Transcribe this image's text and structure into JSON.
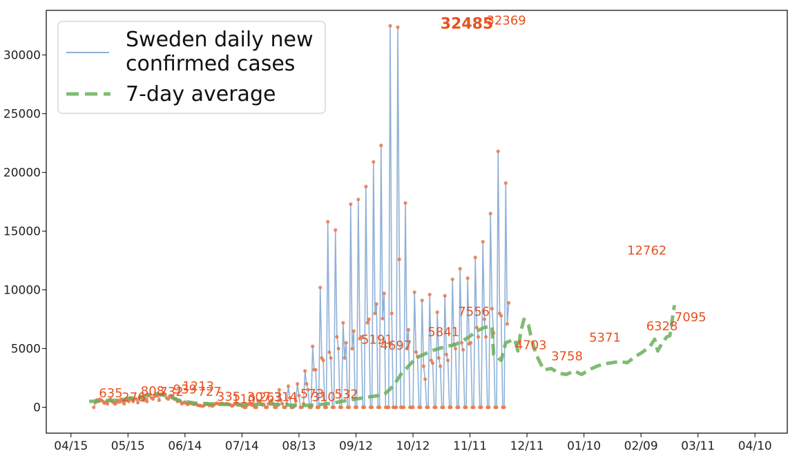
{
  "chart_data": {
    "type": "line",
    "title": "",
    "xlabel": "",
    "ylabel": "",
    "x_tick_labels": [
      "04/15",
      "05/15",
      "06/14",
      "07/14",
      "08/13",
      "09/12",
      "10/12",
      "11/11",
      "12/11",
      "01/10",
      "02/09",
      "03/11",
      "04/10"
    ],
    "x_tick_offsets_days": [
      0,
      30,
      60,
      90,
      120,
      150,
      180,
      210,
      240,
      270,
      300,
      330,
      360
    ],
    "y_ticks": [
      0,
      5000,
      10000,
      15000,
      20000,
      25000,
      30000
    ],
    "y_tick_labels": [
      "0",
      "5000",
      "10000",
      "15000",
      "20000",
      "25000",
      "30000"
    ],
    "xlim_days": [
      -13,
      377
    ],
    "ylim": [
      -2200,
      33800
    ],
    "legend": {
      "placement": "top-left",
      "entries": [
        {
          "label_line1": "Sweden daily new",
          "label_line2": "confirmed cases",
          "color": "#8fb1d6",
          "style": "solid"
        },
        {
          "label_line1": "7-day average",
          "color": "#6aaf5c",
          "style": "dashed"
        }
      ]
    },
    "daily_color": "#8fb1d6",
    "marker_color": "#e8794b",
    "average_color": "#6aaf5c",
    "annotation_color": "#e8501e",
    "series_daily": {
      "start_day": 12,
      "values": [
        0,
        400,
        635,
        500,
        700,
        600,
        500,
        350,
        450,
        300,
        600,
        700,
        500,
        400,
        276,
        400,
        600,
        450,
        700,
        500,
        300,
        600,
        700,
        500,
        808,
        650,
        500,
        750,
        700,
        400,
        800,
        900,
        700,
        600,
        732,
        500,
        1000,
        1100,
        800,
        700,
        939,
        1000,
        1000,
        600,
        1100,
        1100,
        1213,
        1100,
        800,
        700,
        900,
        1000,
        900,
        700,
        727,
        500,
        600,
        500,
        300,
        400,
        450,
        300,
        250,
        400,
        335,
        300,
        250,
        300,
        200,
        150,
        150,
        100,
        110,
        200,
        300,
        250,
        150,
        200,
        100,
        200,
        307,
        350,
        300,
        250,
        350,
        300,
        263,
        300,
        300,
        250,
        200,
        100,
        200,
        300,
        314,
        200,
        250,
        150,
        100,
        0,
        0,
        200,
        300,
        250,
        200,
        150,
        0,
        0,
        573,
        500,
        300,
        200,
        250,
        0,
        0,
        310,
        400,
        600,
        300,
        0,
        0,
        200,
        1500,
        600,
        300,
        0,
        0,
        300,
        1800,
        800,
        0,
        0,
        100,
        532,
        2000,
        1000,
        0,
        0,
        300,
        3100,
        2000,
        1500,
        0,
        0,
        5191,
        3200,
        3200,
        0,
        0,
        10200,
        4200,
        4000,
        0,
        0,
        15800,
        4697,
        4200,
        0,
        0,
        15100,
        6000,
        5000,
        0,
        0,
        7200,
        4200,
        5500,
        0,
        0,
        17300,
        5000,
        6500,
        0,
        0,
        17700,
        5841,
        6000,
        0,
        0,
        18800,
        7200,
        7500,
        0,
        0,
        20900,
        8000,
        8800,
        0,
        0,
        22300,
        7556,
        9700,
        0,
        0,
        0,
        32485,
        8000,
        0,
        0,
        0,
        32369,
        12600,
        0,
        0,
        0,
        17400,
        5000,
        6600,
        0,
        0,
        0,
        9800,
        4703,
        4300,
        0,
        0,
        9100,
        3500,
        2400,
        0,
        0,
        9600,
        4000,
        3758,
        0,
        0,
        8100,
        4200,
        3500,
        0,
        0,
        9500,
        4500,
        4000,
        0,
        0,
        10900,
        5371,
        5000,
        0,
        0,
        11800,
        5500,
        4900,
        0,
        0,
        11000,
        5400,
        5500,
        0,
        0,
        12762,
        6800,
        6000,
        0,
        0,
        14100,
        7500,
        6000,
        0,
        0,
        16500,
        8400,
        6328,
        0,
        0,
        21800,
        8000,
        7800,
        0,
        0,
        19100,
        7095,
        8900
      ]
    },
    "series_average": [
      [
        12,
        500
      ],
      [
        22,
        570
      ],
      [
        32,
        600
      ],
      [
        42,
        850
      ],
      [
        47,
        900
      ],
      [
        52,
        1150
      ],
      [
        57,
        1150
      ],
      [
        62,
        1000
      ],
      [
        67,
        800
      ],
      [
        72,
        550
      ],
      [
        82,
        350
      ],
      [
        92,
        300
      ],
      [
        102,
        250
      ],
      [
        112,
        220
      ],
      [
        122,
        250
      ],
      [
        132,
        270
      ],
      [
        142,
        200
      ],
      [
        152,
        150
      ],
      [
        162,
        200
      ],
      [
        172,
        350
      ],
      [
        182,
        600
      ],
      [
        192,
        800
      ],
      [
        202,
        1000
      ],
      [
        207,
        1200
      ],
      [
        212,
        1800
      ],
      [
        217,
        2800
      ],
      [
        222,
        3500
      ],
      [
        227,
        4200
      ],
      [
        232,
        4500
      ],
      [
        237,
        4800
      ],
      [
        242,
        5000
      ],
      [
        247,
        5200
      ],
      [
        252,
        5300
      ],
      [
        257,
        5600
      ],
      [
        262,
        6000
      ],
      [
        267,
        6500
      ],
      [
        272,
        6800
      ],
      [
        277,
        6900
      ],
      [
        278,
        4500
      ],
      [
        283,
        4000
      ],
      [
        286,
        5500
      ],
      [
        292,
        5800
      ],
      [
        294,
        4800
      ],
      [
        296,
        6500
      ],
      [
        298,
        7500
      ],
      [
        301,
        7000
      ],
      [
        303,
        5800
      ],
      [
        306,
        4500
      ],
      [
        311,
        3200
      ],
      [
        316,
        3300
      ],
      [
        321,
        2900
      ],
      [
        326,
        2800
      ],
      [
        331,
        3100
      ],
      [
        336,
        2800
      ],
      [
        341,
        3200
      ],
      [
        346,
        3500
      ],
      [
        351,
        3700
      ],
      [
        356,
        3800
      ],
      [
        361,
        3900
      ],
      [
        366,
        3800
      ],
      [
        371,
        4300
      ],
      [
        376,
        4700
      ],
      [
        381,
        5200
      ],
      [
        384,
        5800
      ],
      [
        386,
        4800
      ],
      [
        389,
        5500
      ],
      [
        392,
        6000
      ],
      [
        394,
        6100
      ],
      [
        397,
        8700
      ]
    ],
    "point_annotations": [
      {
        "text": "635",
        "day": 14,
        "value": 635
      },
      {
        "text": "276",
        "day": 26,
        "value": 276
      },
      {
        "text": "808",
        "day": 36,
        "value": 808
      },
      {
        "text": "732",
        "day": 46,
        "value": 732
      },
      {
        "text": "939",
        "day": 53,
        "value": 939
      },
      {
        "text": "1213",
        "day": 58,
        "value": 1213
      },
      {
        "text": "727",
        "day": 66,
        "value": 727
      },
      {
        "text": "335",
        "day": 76,
        "value": 335
      },
      {
        "text": "110",
        "day": 84,
        "value": 110
      },
      {
        "text": "307",
        "day": 92,
        "value": 307
      },
      {
        "text": "263",
        "day": 98,
        "value": 263
      },
      {
        "text": "314",
        "day": 106,
        "value": 314
      },
      {
        "text": "573",
        "day": 120,
        "value": 573
      },
      {
        "text": "310",
        "day": 126,
        "value": 310
      },
      {
        "text": "532",
        "day": 138,
        "value": 532
      },
      {
        "text": "5191",
        "day": 152,
        "value": 5191
      },
      {
        "text": "4697",
        "day": 162,
        "value": 4697
      },
      {
        "text": "5841",
        "day": 187,
        "value": 5841
      },
      {
        "text": "7556",
        "day": 203,
        "value": 7556
      },
      {
        "text": "32369",
        "day": 218,
        "value": 32369
      },
      {
        "text": "4703",
        "day": 233,
        "value": 4703
      },
      {
        "text": "3758",
        "day": 252,
        "value": 3758
      },
      {
        "text": "5371",
        "day": 272,
        "value": 5371
      },
      {
        "text": "12762",
        "day": 292,
        "value": 12762
      },
      {
        "text": "6328",
        "day": 302,
        "value": 6328
      },
      {
        "text": "7095",
        "day": 317,
        "value": 7095
      }
    ],
    "peak_annotation": {
      "text": "32485",
      "day": 212,
      "value": 32485
    }
  }
}
